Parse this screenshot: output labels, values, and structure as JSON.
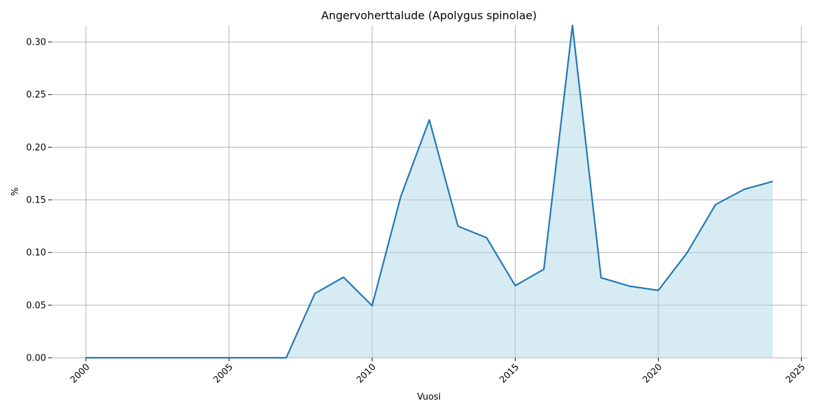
{
  "chart_data": {
    "type": "line",
    "title": "Angervoherttalude (Apolygus spinolae)",
    "xlabel": "Vuosi",
    "ylabel": "%",
    "x": [
      2000,
      2001,
      2002,
      2003,
      2004,
      2005,
      2006,
      2007,
      2008,
      2009,
      2010,
      2011,
      2012,
      2013,
      2014,
      2015,
      2016,
      2017,
      2018,
      2019,
      2020,
      2021,
      2022,
      2023,
      2024
    ],
    "series": [
      {
        "name": "Angervoherttalude",
        "color": "#1f77b4",
        "fill": "#add8e6",
        "values": [
          0,
          0,
          0,
          0,
          0,
          0,
          0,
          0,
          0.061,
          0.0765,
          0.0495,
          0.153,
          0.226,
          0.125,
          0.114,
          0.0685,
          0.084,
          0.3157,
          0.076,
          0.068,
          0.064,
          0.0995,
          0.1455,
          0.16,
          0.1675
        ]
      }
    ],
    "xlim": [
      1998.8,
      2025.2
    ],
    "xticks": [
      2000,
      2005,
      2010,
      2015,
      2020,
      2025
    ],
    "ylim": [
      0,
      0.3157
    ],
    "yticks": [
      {
        "value": 0,
        "label": "0.00"
      },
      {
        "value": 0.05,
        "label": "0.05"
      },
      {
        "value": 0.1,
        "label": "0.10"
      },
      {
        "value": 0.15,
        "label": "0.15"
      },
      {
        "value": 0.2,
        "label": "0.20"
      },
      {
        "value": 0.25,
        "label": "0.25"
      },
      {
        "value": 0.3,
        "label": "0.30"
      }
    ],
    "grid": true
  }
}
